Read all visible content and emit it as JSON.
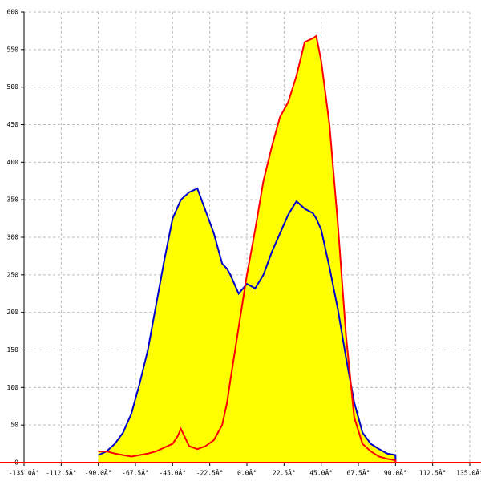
{
  "chart_data": {
    "type": "area",
    "x": [
      -90,
      -85,
      -80,
      -75,
      -70,
      -65,
      -60,
      -55,
      -50,
      -45,
      -42,
      -40,
      -35,
      -30,
      -25,
      -20,
      -15,
      -12,
      -10,
      -5,
      0,
      5,
      10,
      15,
      20,
      25,
      30,
      35,
      40,
      42,
      45,
      50,
      55,
      60,
      65,
      70,
      75,
      80,
      85,
      90
    ],
    "series": [
      {
        "color": "#0000cc",
        "values": [
          10,
          15,
          25,
          40,
          65,
          105,
          150,
          210,
          270,
          325,
          340,
          350,
          360,
          365,
          335,
          305,
          265,
          258,
          250,
          225,
          238,
          232,
          250,
          280,
          305,
          330,
          348,
          338,
          332,
          325,
          310,
          260,
          205,
          140,
          80,
          40,
          25,
          18,
          12,
          10
        ]
      },
      {
        "color": "#ff0000",
        "values": [
          15,
          15,
          12,
          10,
          8,
          10,
          12,
          15,
          20,
          25,
          35,
          45,
          22,
          18,
          22,
          30,
          50,
          80,
          110,
          180,
          250,
          310,
          375,
          420,
          460,
          480,
          515,
          560,
          565,
          568,
          535,
          450,
          320,
          170,
          60,
          25,
          15,
          8,
          5,
          3
        ]
      }
    ],
    "fill": "#ffff00",
    "xlim": [
      -135,
      135
    ],
    "ylim": [
      0,
      600
    ],
    "xticks": [
      {
        "value": -135,
        "label": "-135.0Â°"
      },
      {
        "value": -112.5,
        "label": "-112.5Â°"
      },
      {
        "value": -90,
        "label": "-90.0Â°"
      },
      {
        "value": -67.5,
        "label": "-67.5Â°"
      },
      {
        "value": -45,
        "label": "-45.0Â°"
      },
      {
        "value": -22.5,
        "label": "-22.5Â°"
      },
      {
        "value": 0,
        "label": "0.0Â°"
      },
      {
        "value": 22.5,
        "label": "22.5Â°"
      },
      {
        "value": 45,
        "label": "45.0Â°"
      },
      {
        "value": 67.5,
        "label": "67.5Â°"
      },
      {
        "value": 90,
        "label": "90.0Â°"
      },
      {
        "value": 112.5,
        "label": "112.5Â°"
      },
      {
        "value": 135,
        "label": "135.0Â°"
      }
    ],
    "yticks": [
      0,
      50,
      100,
      150,
      200,
      250,
      300,
      350,
      400,
      450,
      500,
      550,
      600
    ],
    "grid": true
  }
}
